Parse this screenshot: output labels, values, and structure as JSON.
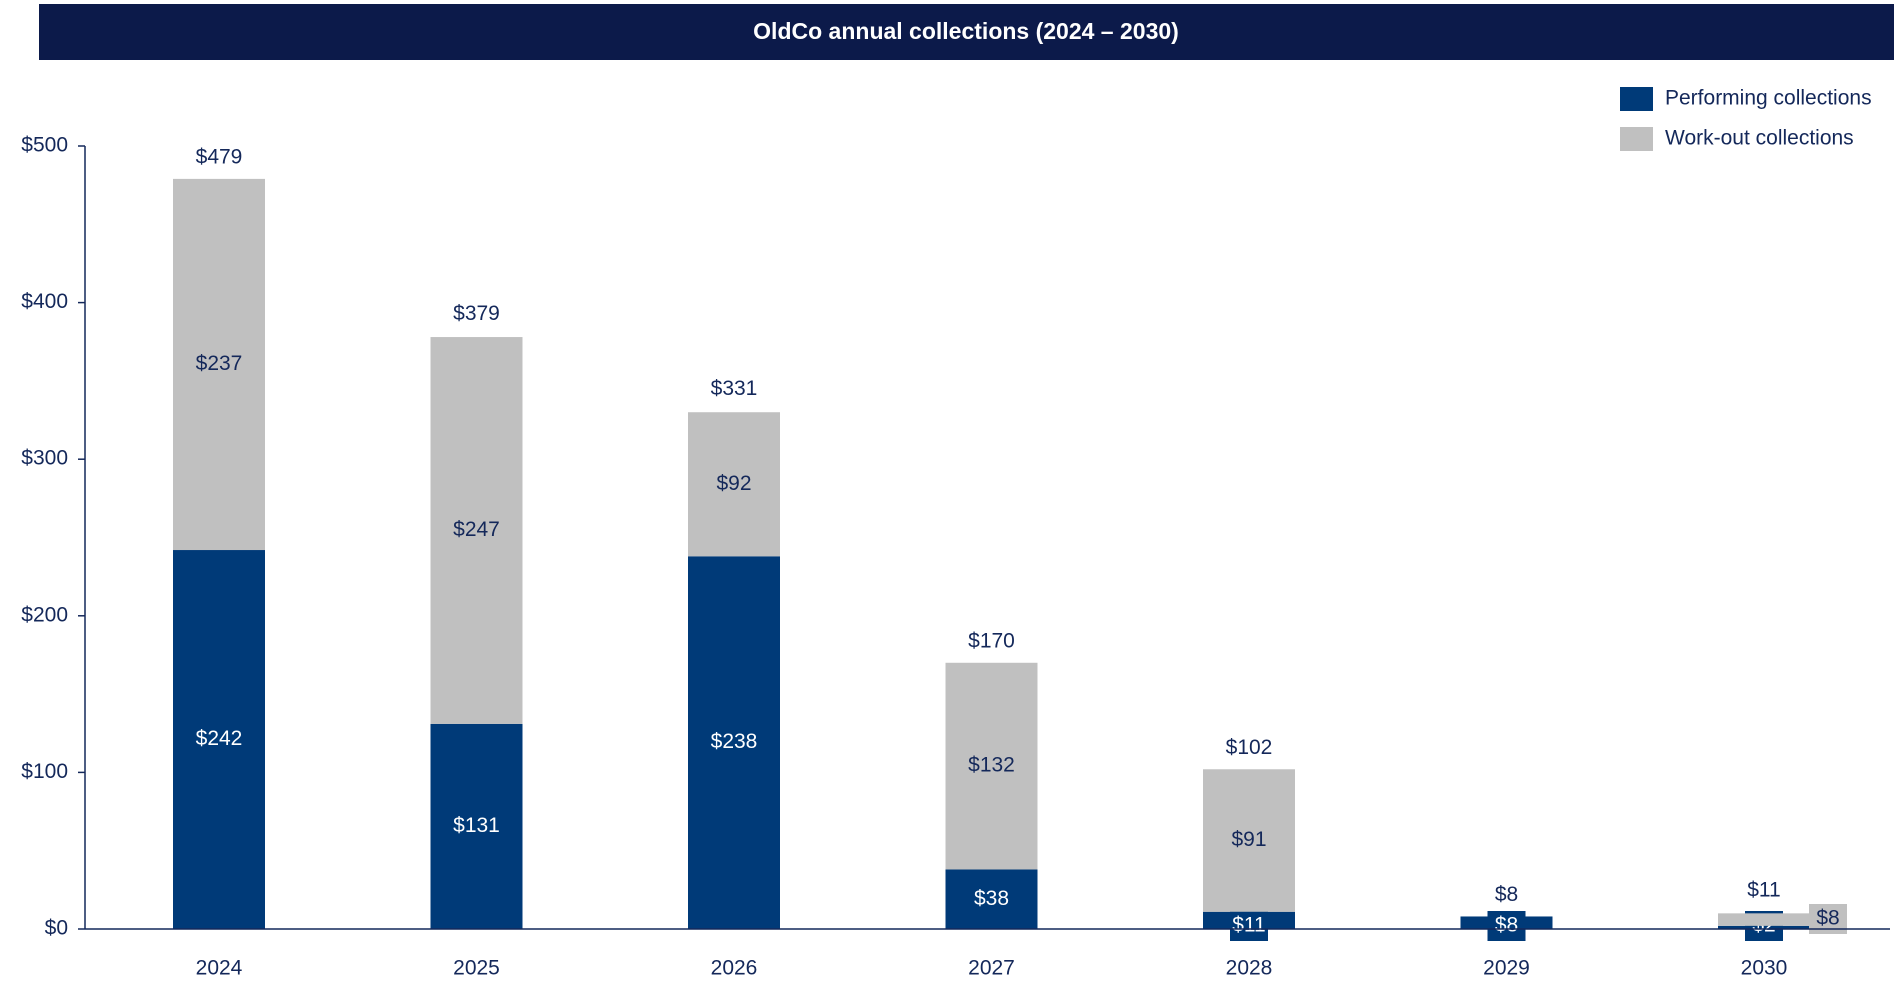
{
  "chart_data": {
    "type": "stacked_bar",
    "title": "OldCo annual collections (2024 – 2030)",
    "categories": [
      "2024",
      "2025",
      "2026",
      "2027",
      "2028",
      "2029",
      "2030"
    ],
    "series": [
      {
        "name": "Performing collections",
        "color": "#003a78",
        "values": [
          242,
          131,
          238,
          38,
          11,
          8,
          2
        ],
        "value_labels": [
          "$242",
          "$131",
          "$238",
          "$38",
          "$11",
          "$8",
          "$2"
        ]
      },
      {
        "name": "Work-out collections",
        "color": "#c0c0c0",
        "values": [
          237,
          247,
          92,
          132,
          91,
          null,
          8
        ],
        "value_labels": [
          "$237",
          "$247",
          "$92",
          "$132",
          "$91",
          null,
          "$8"
        ]
      }
    ],
    "totals": [
      479,
      379,
      331,
      170,
      102,
      8,
      11
    ],
    "total_labels": [
      "$479",
      "$379",
      "$331",
      "$170",
      "$102",
      "$8",
      "$11"
    ],
    "ylim": [
      0,
      500
    ],
    "yticks": [
      {
        "value": 0,
        "label": "$0"
      },
      {
        "value": 100,
        "label": "$100"
      },
      {
        "value": 200,
        "label": "$200"
      },
      {
        "value": 300,
        "label": "$300"
      },
      {
        "value": 400,
        "label": "$400"
      },
      {
        "value": 500,
        "label": "$500"
      }
    ],
    "legend": "top-right"
  }
}
